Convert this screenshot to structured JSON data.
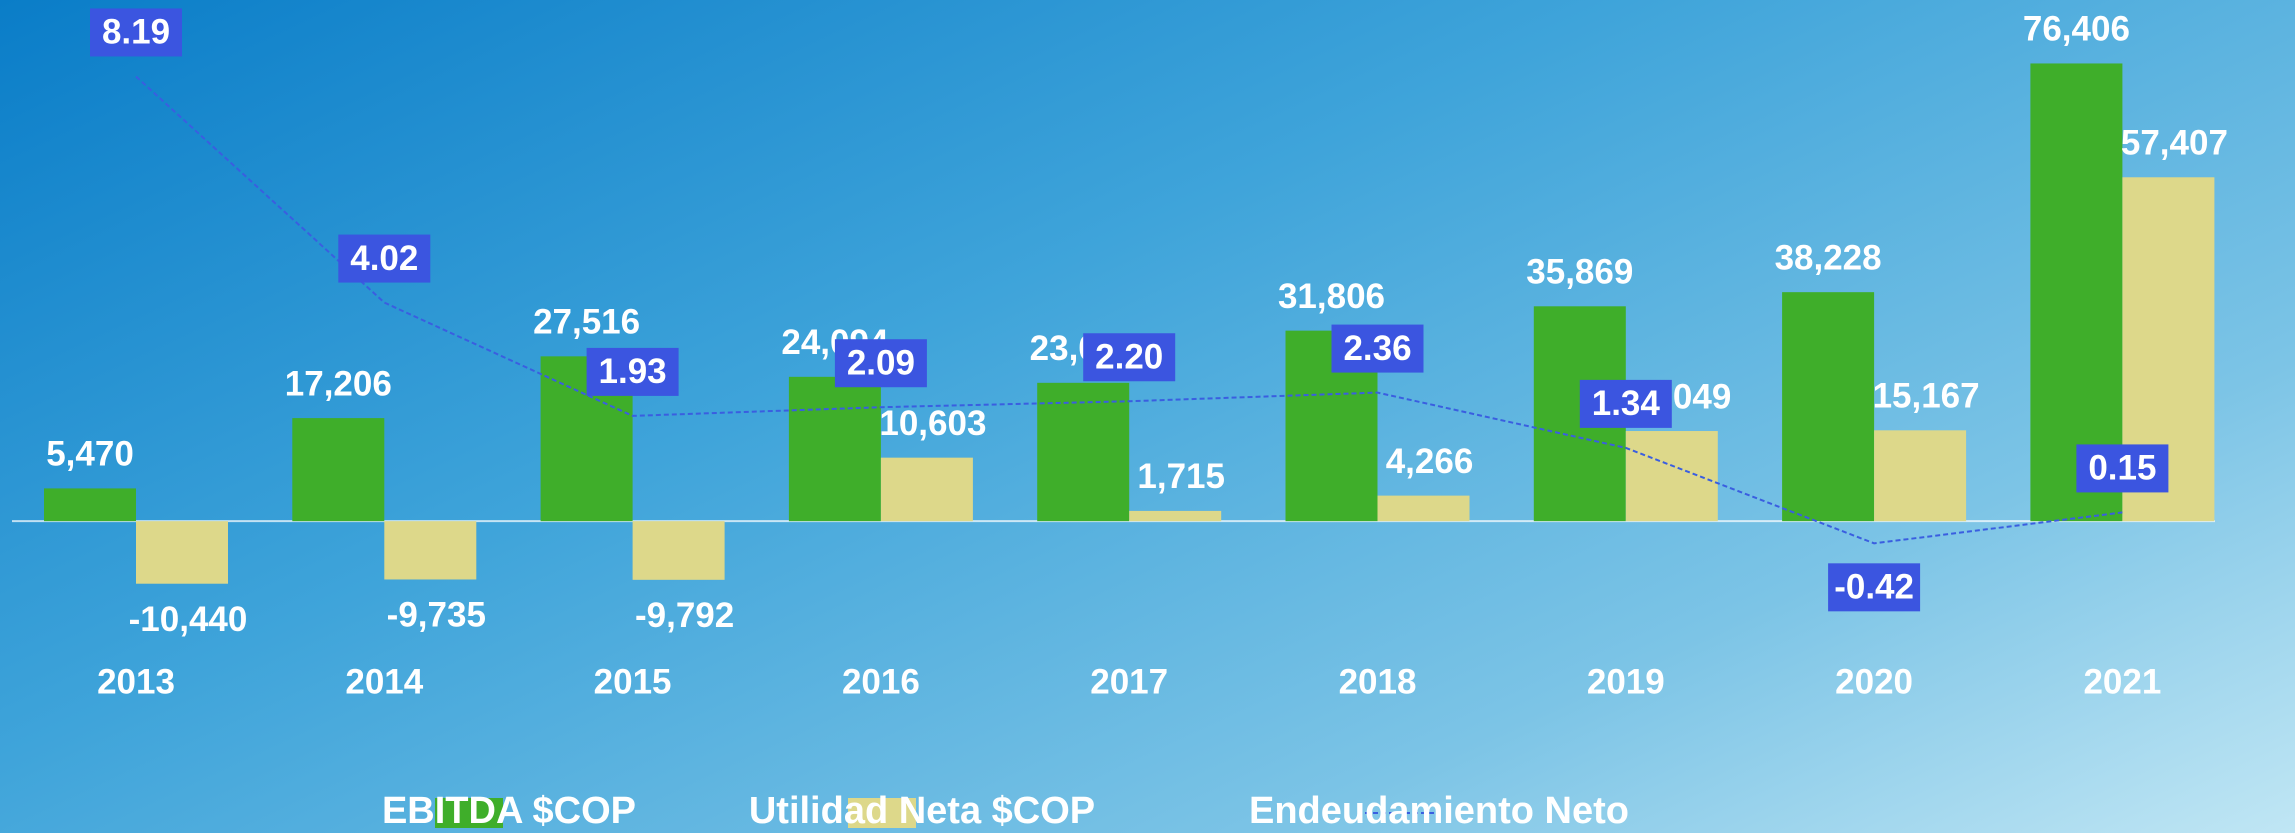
{
  "chart_data": {
    "type": "bar",
    "categories": [
      "2013",
      "2014",
      "2015",
      "2016",
      "2017",
      "2018",
      "2019",
      "2020",
      "2021"
    ],
    "series": [
      {
        "name": "EBITDA $COP",
        "color": "#3fae2a",
        "values": [
          5470,
          17206,
          27516,
          24094,
          23095,
          31806,
          35869,
          38228,
          76406
        ],
        "value_labels": [
          "5,470",
          "17,206",
          "27,516",
          "24,094",
          "23,095",
          "31,806",
          "35,869",
          "38,228",
          "76,406"
        ]
      },
      {
        "name": "Utilidad Neta $COP",
        "color": "#ddd88a",
        "values": [
          -10440,
          -9735,
          -9792,
          10603,
          1715,
          4266,
          15049,
          15167,
          57407
        ],
        "value_labels": [
          "-10,440",
          "-9,735",
          "-9,792",
          "10,603",
          "1,715",
          "4,266",
          "15,049",
          "15,167",
          "57,407"
        ]
      },
      {
        "name": "Endeudamiento Neto",
        "color": "#3a5ee0",
        "type": "line",
        "axis": "y2",
        "values": [
          8.19,
          4.02,
          1.93,
          2.09,
          2.2,
          2.36,
          1.34,
          -0.42,
          0.15
        ],
        "value_labels": [
          "8.19",
          "4.02",
          "1.93",
          "2.09",
          "2.20",
          "2.36",
          "1.34",
          "-0.42",
          "0.15"
        ]
      }
    ],
    "ylim": [
      -18000,
      87000
    ],
    "y2lim": [
      -2,
      9.6
    ],
    "legend": "bottom"
  }
}
